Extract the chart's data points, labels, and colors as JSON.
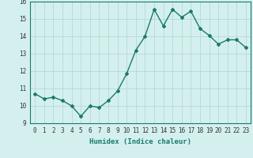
{
  "xlabel": "Humidex (Indice chaleur)",
  "x": [
    0,
    1,
    2,
    3,
    4,
    5,
    6,
    7,
    8,
    9,
    10,
    11,
    12,
    13,
    14,
    15,
    16,
    17,
    18,
    19,
    20,
    21,
    22,
    23
  ],
  "y": [
    10.7,
    10.4,
    10.5,
    10.3,
    10.0,
    9.4,
    10.0,
    9.9,
    10.3,
    10.85,
    11.85,
    13.2,
    14.0,
    15.55,
    14.6,
    15.55,
    15.1,
    15.45,
    14.45,
    14.05,
    13.55,
    13.8,
    13.8,
    13.35
  ],
  "line_color": "#1a7a6a",
  "marker": "D",
  "marker_size": 2.0,
  "bg_color": "#d4f0ee",
  "grid_color": "#b8d8d4",
  "ylim": [
    9,
    16
  ],
  "yticks": [
    9,
    10,
    11,
    12,
    13,
    14,
    15,
    16
  ],
  "xticks": [
    0,
    1,
    2,
    3,
    4,
    5,
    6,
    7,
    8,
    9,
    10,
    11,
    12,
    13,
    14,
    15,
    16,
    17,
    18,
    19,
    20,
    21,
    22,
    23
  ],
  "tick_fontsize": 5.5,
  "xlabel_fontsize": 6.5,
  "linewidth": 1.0
}
